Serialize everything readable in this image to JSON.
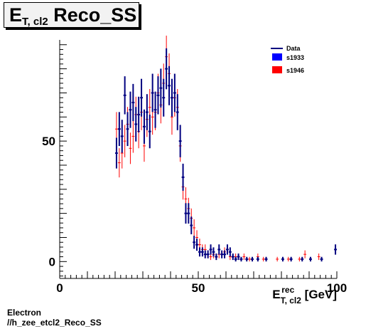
{
  "title": {
    "main": "E",
    "sub": "T, cl2",
    "rest": " Reco_SS"
  },
  "footer": {
    "line1": "Electron",
    "line2": "//h_zee_etcl2_Reco_SS"
  },
  "xaxis": {
    "base": "E",
    "sup": "rec",
    "sub": "T, cl2",
    "unit": " [GeV]"
  },
  "colors": {
    "data": "#000080",
    "s1933": "#0000ff",
    "s1946": "#ff0000"
  },
  "chart_data": {
    "type": "scatter",
    "title": "E_T, cl2 Reco_SS",
    "xlabel": "E_T, cl2^rec [GeV]",
    "ylabel": "",
    "xlim": [
      0,
      100
    ],
    "ylim": [
      -7,
      92
    ],
    "x_ticks": [
      0,
      50,
      100
    ],
    "y_ticks": [
      0,
      50
    ],
    "legend": {
      "position": "top-right",
      "entries": [
        "Data",
        "s1933",
        "s1946"
      ]
    },
    "series": [
      {
        "name": "s1933",
        "x": [
          20.5,
          21.5,
          22.5,
          23.5,
          24.5,
          25.5,
          26.5,
          27.5,
          28.5,
          29.5,
          30.5,
          31.5,
          32.5,
          33.5,
          34.5,
          35.5,
          36.5,
          37.5,
          38.5,
          39.5,
          40.5,
          41.5,
          42.5,
          43.5,
          44.5,
          45.5,
          46.5,
          47.5,
          48.5,
          49.5,
          50.5,
          51.5,
          52.5,
          53.5,
          54.5,
          55.5,
          56.5,
          57.5,
          58.5,
          59.5,
          60.5,
          61.5,
          62.5,
          63.5,
          64.5,
          65.5,
          67.5,
          69.5,
          71.5,
          74.5,
          80.5,
          83.5,
          87.5,
          90.5,
          94.5,
          99.5
        ],
        "y": [
          45,
          55,
          52,
          69,
          55,
          63,
          66,
          57,
          61,
          68,
          56,
          62,
          54,
          70,
          63,
          69,
          72,
          68,
          80,
          73,
          68,
          70,
          62,
          50,
          35,
          20,
          20,
          15,
          8,
          7,
          4,
          4,
          3,
          3,
          5,
          4,
          2,
          5,
          3,
          3,
          5,
          4,
          2,
          1,
          2,
          1,
          1,
          1,
          1,
          1,
          1,
          1,
          1,
          1,
          1,
          5
        ]
      },
      {
        "name": "s1946",
        "x": [
          20.5,
          21.5,
          22.5,
          23.5,
          24.5,
          25.5,
          26.5,
          27.5,
          28.5,
          29.5,
          30.5,
          31.5,
          32.5,
          33.5,
          34.5,
          35.5,
          36.5,
          37.5,
          38.5,
          39.5,
          40.5,
          41.5,
          42.5,
          43.5,
          44.5,
          45.5,
          46.5,
          47.5,
          48.5,
          49.5,
          50.5,
          51.5,
          52.5,
          53.5,
          54.5,
          55.5,
          56.5,
          57.5,
          59.5,
          61.5,
          63.5,
          66.5,
          68.5,
          71.5,
          73.5,
          78.5,
          82.5,
          86.5,
          88.5,
          93.5
        ],
        "y": [
          55,
          41,
          45,
          50,
          57,
          47,
          52,
          61,
          54,
          62,
          48,
          59,
          64,
          60,
          62,
          70,
          65,
          74,
          85,
          78,
          60,
          68,
          64,
          48,
          31,
          26,
          22,
          18,
          14,
          10,
          7,
          5,
          5,
          3,
          2,
          3,
          2,
          3,
          4,
          2,
          2,
          2,
          1,
          2,
          1,
          1,
          1,
          1,
          3,
          2
        ]
      }
    ]
  }
}
